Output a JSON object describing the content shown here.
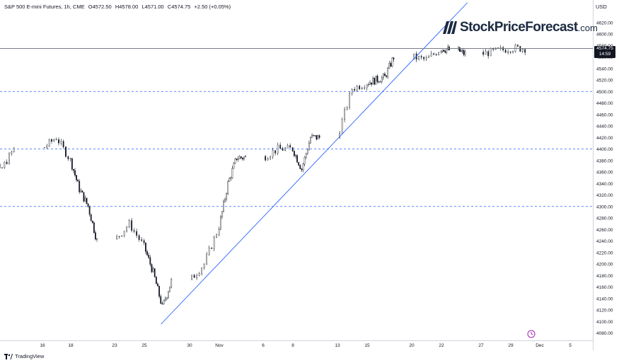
{
  "header": {
    "title": "S&P 500 E-mini Futures, 1h, CME",
    "open": "O4572.50",
    "high": "H4578.00",
    "low": "L4571.00",
    "close": "C4574.75",
    "change": "+2.50 (+0.05%)"
  },
  "currency": "USD",
  "brand": {
    "name": "StockPriceForecast",
    "domain": ".com"
  },
  "footer": {
    "platform": "TradingView"
  },
  "last_price": {
    "value": "4574.75",
    "countdown": "14:59"
  },
  "colors": {
    "candles": "#131722",
    "trendline": "#2962ff",
    "levels": "#2962ff",
    "grid": "#d1d4dc"
  },
  "chart_data": {
    "type": "candlestick",
    "ylim": [
      4070,
      4630
    ],
    "y_ticks": [
      4080,
      4100,
      4120,
      4140,
      4160,
      4180,
      4200,
      4220,
      4240,
      4260,
      4280,
      4300,
      4320,
      4340,
      4360,
      4380,
      4400,
      4420,
      4440,
      4460,
      4480,
      4500,
      4520,
      4540,
      4560,
      4580,
      4600,
      4620
    ],
    "x_ticks": [
      "16",
      "18",
      "23",
      "25",
      "30",
      "Nov",
      "6",
      "8",
      "13",
      "15",
      "20",
      "22",
      "27",
      "29",
      "Dec",
      "5"
    ],
    "horizontal_levels": [
      4300,
      4400,
      4500
    ],
    "trendline": {
      "from": {
        "date": "2023-10-27",
        "price": 4110
      },
      "to": {
        "date": "2023-11-22",
        "price": 4620
      }
    },
    "last_price": 4574.75,
    "price_path": [
      [
        "2023-10-11",
        4385
      ],
      [
        "2023-10-12",
        4430
      ],
      [
        "2023-10-13",
        4360
      ],
      [
        "2023-10-16",
        4400
      ],
      [
        "2023-10-17",
        4420
      ],
      [
        "2023-10-18",
        4380
      ],
      [
        "2023-10-19",
        4330
      ],
      [
        "2023-10-20",
        4300
      ],
      [
        "2023-10-23",
        4240
      ],
      [
        "2023-10-24",
        4270
      ],
      [
        "2023-10-25",
        4230
      ],
      [
        "2023-10-26",
        4185
      ],
      [
        "2023-10-27",
        4125
      ],
      [
        "2023-10-30",
        4170
      ],
      [
        "2023-10-31",
        4200
      ],
      [
        "2023-11-01",
        4265
      ],
      [
        "2023-11-02",
        4340
      ],
      [
        "2023-11-03",
        4385
      ],
      [
        "2023-11-06",
        4385
      ],
      [
        "2023-11-07",
        4400
      ],
      [
        "2023-11-08",
        4400
      ],
      [
        "2023-11-09",
        4365
      ],
      [
        "2023-11-10",
        4420
      ],
      [
        "2023-11-13",
        4420
      ],
      [
        "2023-11-14",
        4505
      ],
      [
        "2023-11-15",
        4515
      ],
      [
        "2023-11-16",
        4520
      ],
      [
        "2023-11-17",
        4525
      ],
      [
        "2023-11-20",
        4560
      ],
      [
        "2023-11-21",
        4555
      ],
      [
        "2023-11-22",
        4575
      ],
      [
        "2023-11-24",
        4572
      ],
      [
        "2023-11-27",
        4565
      ],
      [
        "2023-11-28",
        4570
      ],
      [
        "2023-11-29",
        4575
      ],
      [
        "2023-11-30",
        4574.75
      ]
    ]
  }
}
